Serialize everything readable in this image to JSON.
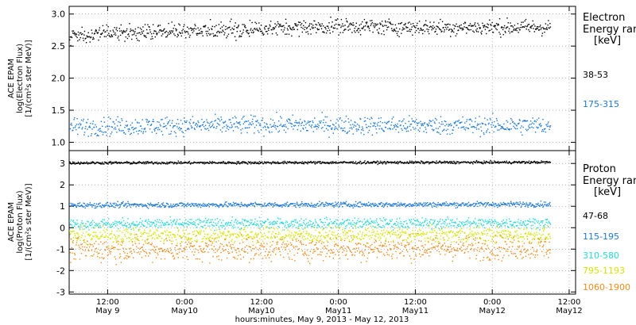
{
  "chart_data": [
    {
      "type": "scatter",
      "panel": "electron",
      "ylabel_lines": [
        "ACE EPAM",
        "log(Electron Flux)",
        "[1/(cm²s ster MeV)]"
      ],
      "yticks": [
        "1.0",
        "1.5",
        "2.0",
        "2.5",
        "3.0"
      ],
      "ytick_values": [
        1.0,
        1.5,
        2.0,
        2.5,
        3.0
      ],
      "ylim": [
        0.87,
        3.12
      ],
      "xlim": [
        "2013-05-09T06:00",
        "2013-05-12T13:00"
      ],
      "grid": "dotted",
      "legend_title": [
        "Electron",
        "Energy ran",
        "[keV]"
      ],
      "series": [
        {
          "name": "38-53",
          "color": "#000000",
          "data_start": "2013-05-09T06:00",
          "data_end": "2013-05-12T09:00",
          "trend": [
            [
              "2013-05-09T06:00",
              2.68
            ],
            [
              "2013-05-09T18:00",
              2.72
            ],
            [
              "2013-05-10T12:00",
              2.78
            ],
            [
              "2013-05-11T00:00",
              2.82
            ],
            [
              "2013-05-11T12:00",
              2.8
            ],
            [
              "2013-05-12T00:00",
              2.8
            ],
            [
              "2013-05-12T09:00",
              2.8
            ]
          ],
          "scatter": 0.06
        },
        {
          "name": "175-315",
          "color": "#1e78d2",
          "data_start": "2013-05-09T06:00",
          "data_end": "2013-05-12T09:00",
          "trend": [
            [
              "2013-05-09T06:00",
              1.25
            ],
            [
              "2013-05-10T12:00",
              1.28
            ],
            [
              "2013-05-11T12:00",
              1.27
            ],
            [
              "2013-05-12T09:00",
              1.27
            ]
          ],
          "scatter": 0.07
        }
      ]
    },
    {
      "type": "scatter",
      "panel": "proton",
      "ylabel_lines": [
        "ACE EPAM",
        "log(Proton Flux)",
        "[1/(cm²s ster MeV)]"
      ],
      "yticks": [
        "-3",
        "-2",
        "-1",
        "0",
        "1",
        "2",
        "3"
      ],
      "ytick_values": [
        -3,
        -2,
        -1,
        0,
        1,
        2,
        3
      ],
      "ylim": [
        -3.1,
        3.6
      ],
      "xlim": [
        "2013-05-09T06:00",
        "2013-05-12T13:00"
      ],
      "xticks": [
        {
          "t": "2013-05-09T12:00",
          "time": "12:00",
          "date": "May 9"
        },
        {
          "t": "2013-05-10T00:00",
          "time": "0:00",
          "date": "May10"
        },
        {
          "t": "2013-05-10T12:00",
          "time": "12:00",
          "date": "May10"
        },
        {
          "t": "2013-05-11T00:00",
          "time": "0:00",
          "date": "May11"
        },
        {
          "t": "2013-05-11T12:00",
          "time": "12:00",
          "date": "May11"
        },
        {
          "t": "2013-05-12T00:00",
          "time": "0:00",
          "date": "May12"
        },
        {
          "t": "2013-05-12T12:00",
          "time": "12:00",
          "date": "May12"
        }
      ],
      "xlabel": "hours:minutes, May  9, 2013 - May 12, 2013",
      "grid": "dotted",
      "legend_title": [
        "Proton",
        "Energy ran",
        "[keV]"
      ],
      "series": [
        {
          "name": "47-68",
          "color": "#000000",
          "data_start": "2013-05-09T06:00",
          "data_end": "2013-05-12T09:00",
          "trend": [
            [
              "2013-05-09T06:00",
              3.05
            ],
            [
              "2013-05-12T09:00",
              3.08
            ]
          ],
          "scatter": 0.03
        },
        {
          "name": "115-195",
          "color": "#1e78d2",
          "data_start": "2013-05-09T06:00",
          "data_end": "2013-05-12T09:00",
          "trend": [
            [
              "2013-05-09T06:00",
              1.08
            ],
            [
              "2013-05-12T09:00",
              1.12
            ]
          ],
          "scatter": 0.06
        },
        {
          "name": "310-580",
          "color": "#2ad7d7",
          "data_start": "2013-05-09T06:00",
          "data_end": "2013-05-12T09:00",
          "trend": [
            [
              "2013-05-09T06:00",
              0.2
            ],
            [
              "2013-05-12T09:00",
              0.25
            ]
          ],
          "scatter": 0.12
        },
        {
          "name": "795-1193",
          "color": "#d2e600",
          "data_start": "2013-05-09T06:00",
          "data_end": "2013-05-12T09:00",
          "trend": [
            [
              "2013-05-09T06:00",
              -0.35
            ],
            [
              "2013-05-12T09:00",
              -0.3
            ]
          ],
          "scatter": 0.18
        },
        {
          "name": "1060-1900",
          "color": "#f08c1e",
          "data_start": "2013-05-09T06:00",
          "data_end": "2013-05-12T09:00",
          "trend": [
            [
              "2013-05-09T06:00",
              -1.0
            ],
            [
              "2013-05-12T09:00",
              -0.9
            ]
          ],
          "scatter": 0.28
        }
      ]
    }
  ]
}
